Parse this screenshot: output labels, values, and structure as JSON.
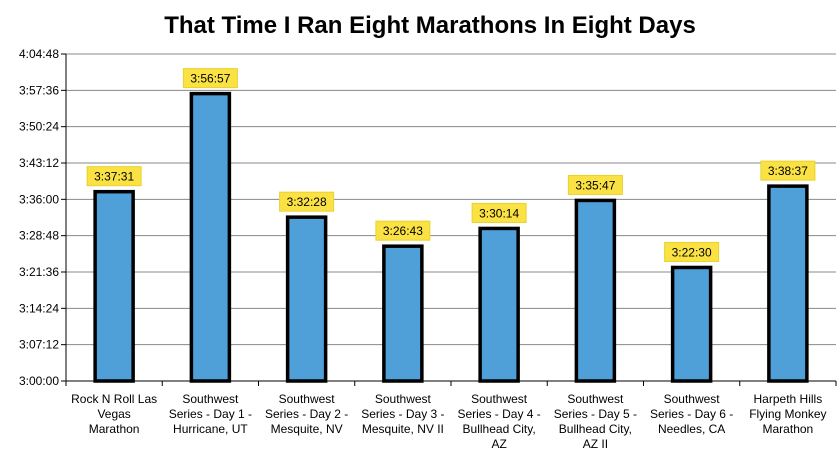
{
  "chart_data": {
    "type": "bar",
    "title": "That Time I Ran Eight Marathons In Eight Days",
    "xlabel": "",
    "ylabel": "",
    "categories": [
      [
        "Rock N Roll Las",
        "Vegas",
        "Marathon"
      ],
      [
        "Southwest",
        "Series - Day 1 -",
        "Hurricane, UT"
      ],
      [
        "Southwest",
        "Series - Day 2 -",
        "Mesquite, NV"
      ],
      [
        "Southwest",
        "Series - Day 3 -",
        "Mesquite, NV II"
      ],
      [
        "Southwest",
        "Series - Day 4 -",
        "Bullhead City,",
        "AZ"
      ],
      [
        "Southwest",
        "Series - Day 5 -",
        "Bullhead City,",
        "AZ II"
      ],
      [
        "Southwest",
        "Series - Day 6 -",
        "Needles, CA"
      ],
      [
        "Harpeth Hills",
        "Flying Monkey",
        "Marathon"
      ]
    ],
    "values": [
      "3:37:31",
      "3:56:57",
      "3:32:28",
      "3:26:43",
      "3:30:14",
      "3:35:47",
      "3:22:30",
      "3:38:37"
    ],
    "ylim": [
      "3:00:00",
      "4:04:48"
    ],
    "yticks": [
      "3:00:00",
      "3:07:12",
      "3:14:24",
      "3:21:36",
      "3:28:48",
      "3:36:00",
      "3:43:12",
      "3:50:24",
      "3:57:36",
      "4:04:48"
    ],
    "grid": true,
    "legend": "none",
    "colors": {
      "bar_fill": "#4f9fd9",
      "bar_stroke": "#000000",
      "label_fill": "#fbe244",
      "gridline": "#888888"
    }
  }
}
